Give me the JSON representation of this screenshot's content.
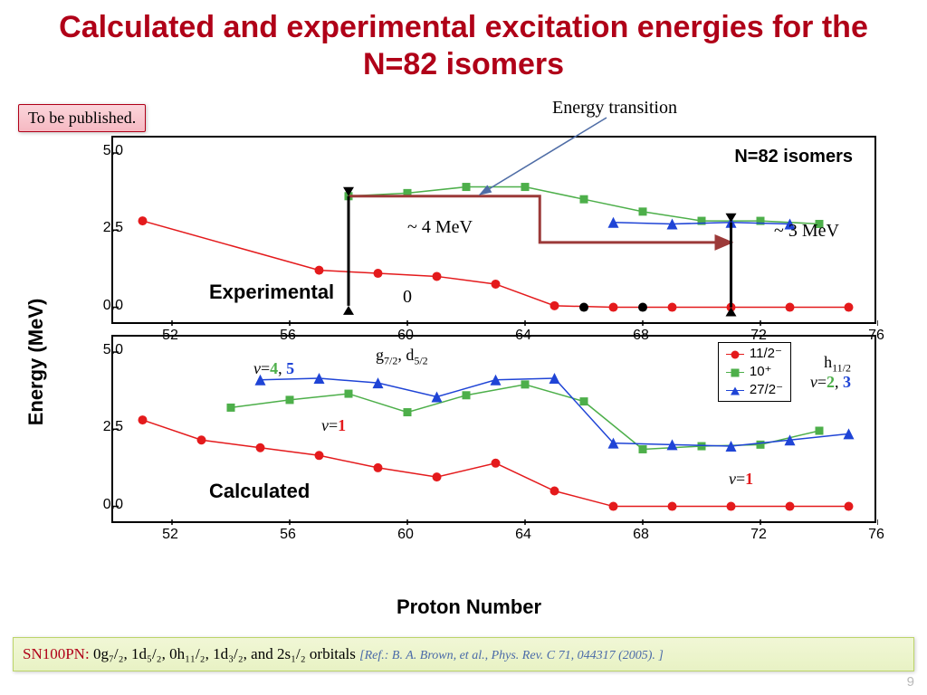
{
  "slide": {
    "title": "Calculated and experimental excitation energies for the N=82 isomers",
    "slide_number": "9"
  },
  "boxes": {
    "publish": "To be published.",
    "energy_transition": "Energy transition",
    "footer_sn": "SN100PN:",
    "footer_orbitals": " 0g₇/₂, 1d₅/₂, 0h₁₁/₂, 1d₃/₂, and 2s₁/₂  orbitals ",
    "footer_ref": "[Ref.: B. A. Brown, et al., Phys. Rev. C 71, 044317 (2005). ]"
  },
  "axes": {
    "ylabel": "Energy (MeV)",
    "xlabel": "Proton Number",
    "xlim": [
      50,
      76
    ],
    "ylim": [
      -0.6,
      5.5
    ],
    "yticks": [
      0.0,
      2.5,
      5.0
    ],
    "xticks": [
      52,
      56,
      60,
      64,
      68,
      72,
      76
    ]
  },
  "panels": {
    "top": {
      "label": "Experimental",
      "n82": "N=82 isomers",
      "mev4": "~ 4 MeV",
      "mev3": "~ 3 MeV",
      "mev0": "0"
    },
    "bot": {
      "label": "Calculated"
    }
  },
  "annotations": {
    "v45": "v=4, 5",
    "gd": "g₇/₂, d₅/₂",
    "v1a": "v=1",
    "h11": "h₁₁/₂",
    "v23": "v=2, 3",
    "v1b": "v=1"
  },
  "legend": {
    "s1": "11/2⁻",
    "s2": "10⁺",
    "s3": "27/2⁻"
  },
  "colors": {
    "red": "#e41a1c",
    "green": "#4daf4a",
    "blue": "#1f44d6",
    "black": "#000000",
    "brown_conn": "#9c3a39",
    "arrow_blue": "#4f6da6"
  },
  "series": {
    "top": {
      "red": {
        "x": [
          51,
          57,
          59,
          61,
          63,
          65,
          67,
          69,
          71,
          73,
          75
        ],
        "y": [
          2.8,
          1.2,
          1.1,
          1.0,
          0.75,
          0.05,
          0.0,
          0.0,
          0.0,
          0.0,
          0.0
        ]
      },
      "green": {
        "x": [
          58,
          60,
          62,
          64,
          66,
          68,
          70,
          72,
          74
        ],
        "y": [
          3.6,
          3.7,
          3.9,
          3.9,
          3.5,
          3.1,
          2.8,
          2.8,
          2.7
        ]
      },
      "blue": {
        "x": [
          67,
          69,
          71,
          73
        ],
        "y": [
          2.75,
          2.7,
          2.75,
          2.7
        ]
      },
      "black": {
        "x": [
          66,
          68
        ],
        "y": [
          0.0,
          0.0
        ]
      }
    },
    "bot": {
      "red": {
        "x": [
          51,
          53,
          55,
          57,
          59,
          61,
          63,
          65,
          67,
          69,
          71,
          73,
          75
        ],
        "y": [
          2.8,
          2.15,
          1.9,
          1.65,
          1.25,
          0.95,
          1.4,
          0.5,
          0.0,
          0.0,
          0.0,
          0.0,
          0.0
        ]
      },
      "green": {
        "x": [
          54,
          56,
          58,
          60,
          62,
          64,
          66,
          68,
          70,
          72,
          74
        ],
        "y": [
          3.2,
          3.45,
          3.65,
          3.05,
          3.6,
          3.95,
          3.4,
          1.85,
          1.95,
          2.0,
          2.45
        ]
      },
      "blue": {
        "x": [
          55,
          57,
          59,
          61,
          63,
          65,
          67,
          69,
          71,
          73,
          75
        ],
        "y": [
          4.1,
          4.15,
          4.0,
          3.55,
          4.1,
          4.15,
          2.05,
          2.0,
          1.95,
          2.15,
          2.35
        ]
      }
    }
  },
  "styling": {
    "marker_radius": 5,
    "line_width": 1.5,
    "panel_border": 2,
    "title_fontsize": 34,
    "axis_label_fontsize": 22,
    "tick_fontsize": 16
  }
}
